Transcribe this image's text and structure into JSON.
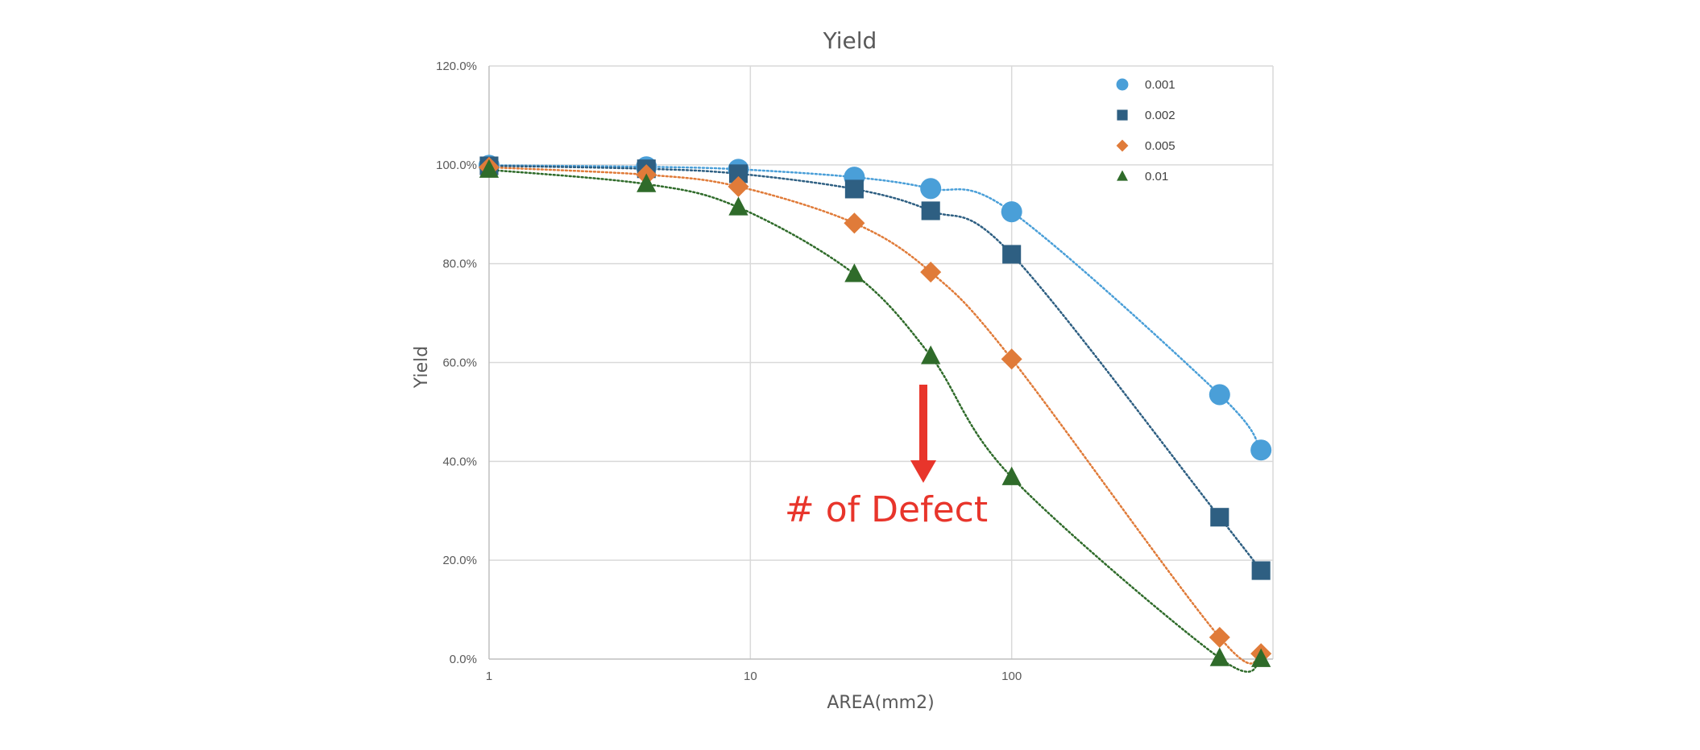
{
  "chart_data": {
    "type": "scatter",
    "title": "Yield",
    "xlabel": "AREA(mm2)",
    "ylabel": "Yield",
    "xscale": "log",
    "xlim": [
      1,
      1000
    ],
    "ylim": [
      0,
      1.2
    ],
    "x_ticks": [
      {
        "value": 1,
        "label": "1"
      },
      {
        "value": 10,
        "label": "10"
      },
      {
        "value": 100,
        "label": "100"
      }
    ],
    "y_ticks": [
      {
        "value": 0,
        "label": "0.0%"
      },
      {
        "value": 0.2,
        "label": "20.0%"
      },
      {
        "value": 0.4,
        "label": "40.0%"
      },
      {
        "value": 0.6,
        "label": "60.0%"
      },
      {
        "value": 0.8,
        "label": "80.0%"
      },
      {
        "value": 1.0,
        "label": "100.0%"
      },
      {
        "value": 1.2,
        "label": "120.0%"
      }
    ],
    "grid": true,
    "legend_position": "top-right",
    "trendlines": "dotted",
    "x": [
      1,
      4,
      9,
      25,
      49,
      100,
      625,
      900
    ],
    "series": [
      {
        "name": "0.001",
        "marker": "circle",
        "color": "#4a9fd8",
        "values": [
          0.999,
          0.996,
          0.991,
          0.975,
          0.952,
          0.905,
          0.535,
          0.423
        ]
      },
      {
        "name": "0.002",
        "marker": "square",
        "color": "#2e5f82",
        "values": [
          0.998,
          0.992,
          0.982,
          0.951,
          0.907,
          0.819,
          0.287,
          0.179
        ]
      },
      {
        "name": "0.005",
        "marker": "diamond",
        "color": "#e07b39",
        "values": [
          0.995,
          0.98,
          0.956,
          0.882,
          0.783,
          0.607,
          0.044,
          0.011
        ]
      },
      {
        "name": "0.01",
        "marker": "triangle",
        "color": "#2f6b2a",
        "values": [
          0.99,
          0.961,
          0.914,
          0.779,
          0.613,
          0.368,
          0.002,
          0.0001
        ]
      }
    ],
    "annotation": {
      "text": "# of Defect",
      "color": "#e8352b"
    }
  }
}
